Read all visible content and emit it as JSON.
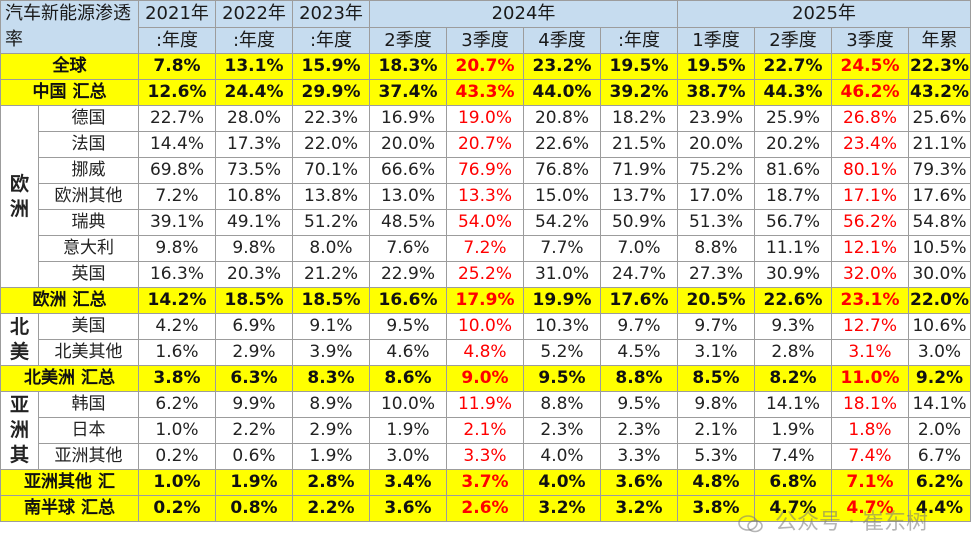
{
  "header": {
    "title": "汽车新能源渗透率",
    "years": {
      "y2021": "2021年",
      "y2022": "2022年",
      "y2023": "2023年",
      "y2024": "2024年",
      "y2025": "2025年"
    },
    "periods": {
      "p2021": ":年度",
      "p2022": ":年度",
      "p2023": ":年度",
      "p2024q2": "2季度",
      "p2024q3": "3季度",
      "p2024q4": "4季度",
      "p2024y": ":年度",
      "p2025q1": "1季度",
      "p2025q2": "2季度",
      "p2025q3": "3季度",
      "p2025ytd": "年累"
    }
  },
  "regions": {
    "europe": "欧洲",
    "north_america": "北美",
    "asia": "亚洲其"
  },
  "rows": {
    "global": {
      "label": "全球",
      "v": [
        "7.8%",
        "13.1%",
        "15.9%",
        "18.3%",
        "20.7%",
        "23.2%",
        "19.5%",
        "19.5%",
        "22.7%",
        "24.5%",
        "22.3%"
      ]
    },
    "china": {
      "label": "中国 汇总",
      "v": [
        "12.6%",
        "24.4%",
        "29.9%",
        "37.4%",
        "43.3%",
        "44.0%",
        "39.2%",
        "38.7%",
        "44.3%",
        "46.2%",
        "43.2%"
      ]
    },
    "germany": {
      "label": "德国",
      "v": [
        "22.7%",
        "28.0%",
        "22.3%",
        "16.9%",
        "19.0%",
        "20.8%",
        "18.2%",
        "23.9%",
        "25.9%",
        "26.8%",
        "25.6%"
      ]
    },
    "france": {
      "label": "法国",
      "v": [
        "14.4%",
        "17.3%",
        "22.0%",
        "20.0%",
        "20.7%",
        "22.6%",
        "21.5%",
        "20.0%",
        "20.2%",
        "23.4%",
        "21.1%"
      ]
    },
    "norway": {
      "label": "挪威",
      "v": [
        "69.8%",
        "73.5%",
        "70.1%",
        "66.6%",
        "76.9%",
        "76.8%",
        "71.9%",
        "75.2%",
        "81.6%",
        "80.1%",
        "79.3%"
      ]
    },
    "eu_other": {
      "label": "欧洲其他",
      "v": [
        "7.2%",
        "10.8%",
        "13.8%",
        "13.0%",
        "13.3%",
        "15.0%",
        "13.7%",
        "17.0%",
        "18.7%",
        "17.1%",
        "17.6%"
      ]
    },
    "sweden": {
      "label": "瑞典",
      "v": [
        "39.1%",
        "49.1%",
        "51.2%",
        "48.5%",
        "54.0%",
        "54.2%",
        "50.9%",
        "51.3%",
        "56.7%",
        "56.2%",
        "54.8%"
      ]
    },
    "italy": {
      "label": "意大利",
      "v": [
        "9.8%",
        "9.8%",
        "8.0%",
        "7.6%",
        "7.2%",
        "7.7%",
        "7.0%",
        "8.8%",
        "11.1%",
        "12.1%",
        "10.5%"
      ]
    },
    "uk": {
      "label": "英国",
      "v": [
        "16.3%",
        "20.3%",
        "21.2%",
        "22.9%",
        "25.2%",
        "31.0%",
        "24.7%",
        "27.3%",
        "30.9%",
        "32.0%",
        "30.0%"
      ]
    },
    "europe_total": {
      "label": "欧洲 汇总",
      "v": [
        "14.2%",
        "18.5%",
        "18.5%",
        "16.6%",
        "17.9%",
        "19.9%",
        "17.6%",
        "20.5%",
        "22.6%",
        "23.1%",
        "22.0%"
      ]
    },
    "usa": {
      "label": "美国",
      "v": [
        "4.2%",
        "6.9%",
        "9.1%",
        "9.5%",
        "10.0%",
        "10.3%",
        "9.7%",
        "9.7%",
        "9.3%",
        "12.7%",
        "10.6%"
      ]
    },
    "na_other": {
      "label": "北美其他",
      "v": [
        "1.6%",
        "2.9%",
        "3.9%",
        "4.6%",
        "4.8%",
        "5.2%",
        "4.5%",
        "3.1%",
        "2.8%",
        "3.1%",
        "3.0%"
      ]
    },
    "na_total": {
      "label": "北美洲 汇总",
      "v": [
        "3.8%",
        "6.3%",
        "8.3%",
        "8.6%",
        "9.0%",
        "9.5%",
        "8.8%",
        "8.5%",
        "8.2%",
        "11.0%",
        "9.2%"
      ]
    },
    "korea": {
      "label": "韩国",
      "v": [
        "6.2%",
        "9.9%",
        "8.9%",
        "10.0%",
        "11.9%",
        "8.8%",
        "9.5%",
        "9.8%",
        "14.1%",
        "18.1%",
        "14.1%"
      ]
    },
    "japan": {
      "label": "日本",
      "v": [
        "1.0%",
        "2.2%",
        "2.9%",
        "1.9%",
        "2.1%",
        "2.3%",
        "2.3%",
        "2.1%",
        "1.9%",
        "1.8%",
        "2.0%"
      ]
    },
    "asia_other": {
      "label": "亚洲其他",
      "v": [
        "0.2%",
        "0.6%",
        "1.9%",
        "3.0%",
        "3.3%",
        "4.0%",
        "3.3%",
        "5.3%",
        "7.4%",
        "7.4%",
        "6.7%"
      ]
    },
    "asia_total": {
      "label": "亚洲其他 汇",
      "v": [
        "1.0%",
        "1.9%",
        "2.8%",
        "3.4%",
        "3.7%",
        "4.0%",
        "3.6%",
        "4.8%",
        "6.8%",
        "7.1%",
        "6.2%"
      ]
    },
    "south_total": {
      "label": "南半球 汇总",
      "v": [
        "0.2%",
        "0.8%",
        "2.2%",
        "3.6%",
        "2.6%",
        "3.2%",
        "3.2%",
        "3.8%",
        "4.7%",
        "4.7%",
        "4.4%"
      ]
    }
  },
  "highlight_color": "#ff0000",
  "total_row_color": "#ffff00",
  "header_color": "#c6dcef",
  "watermark": "公众号 · 崔东树"
}
